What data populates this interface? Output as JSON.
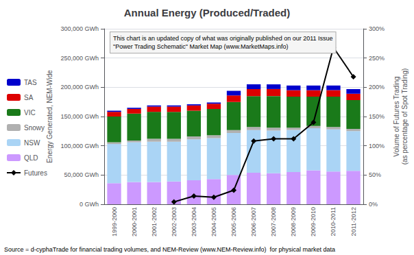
{
  "chart_data": {
    "type": "bar",
    "title": "Annual Energy (Produced/Traded)",
    "categories": [
      "1999-2000",
      "2000-2001",
      "2001-2002",
      "2002-2003",
      "2003-2004",
      "2004-2005",
      "2005-2006",
      "2006-2007",
      "2007-2008",
      "2008-2009",
      "2009-2010",
      "2010-2011",
      "2011-2012"
    ],
    "stacked": true,
    "series": [
      {
        "name": "QLD",
        "color": "#cc99ff",
        "values": [
          36000,
          38000,
          38000,
          39000,
          41000,
          43000,
          50000,
          54000,
          53000,
          55000,
          58000,
          56000,
          57000
        ]
      },
      {
        "name": "NSW",
        "color": "#aad4f5",
        "values": [
          67000,
          68000,
          69000,
          68000,
          70000,
          70000,
          72000,
          73000,
          73000,
          72000,
          72000,
          72000,
          68000
        ]
      },
      {
        "name": "Snowy",
        "color": "#b0b0b0",
        "values": [
          3000,
          3000,
          5000,
          5000,
          5000,
          5000,
          5000,
          5000,
          5000,
          4000,
          4000,
          4000,
          4000
        ]
      },
      {
        "name": "VIC",
        "color": "#1a7a1a",
        "values": [
          44000,
          46000,
          46000,
          46000,
          44000,
          45000,
          48000,
          53000,
          54000,
          53000,
          50000,
          52000,
          49000
        ]
      },
      {
        "name": "SA",
        "color": "#dd0000",
        "values": [
          8000,
          8000,
          9000,
          9000,
          9000,
          9000,
          11000,
          12000,
          12000,
          11000,
          11000,
          11000,
          11000
        ]
      },
      {
        "name": "TAS",
        "color": "#0000cc",
        "values": [
          2000,
          2000,
          2000,
          2000,
          2000,
          2000,
          8000,
          8000,
          8000,
          8000,
          8000,
          8000,
          8000
        ]
      },
      {
        "name": "Futures",
        "type": "line",
        "axis": "y2",
        "color": "#000000",
        "marker": "diamond",
        "values": [
          null,
          null,
          null,
          4,
          14,
          12,
          24,
          108,
          112,
          112,
          140,
          268,
          218
        ]
      }
    ],
    "ylabel": "Energy Generated, NEM-Wide",
    "y2label": "Volume of Futures Trading\n(as percentage of Spot Trading)",
    "ylim": [
      0,
      300000
    ],
    "yticks": [
      {
        "value": 0,
        "label": "0 GWh"
      },
      {
        "value": 50000,
        "label": "50,000 GWh"
      },
      {
        "value": 100000,
        "label": "100,000 GWh"
      },
      {
        "value": 150000,
        "label": "150,000 GWh"
      },
      {
        "value": 200000,
        "label": "200,000 GWh"
      },
      {
        "value": 250000,
        "label": "250,000 GWh"
      },
      {
        "value": 300000,
        "label": "300,000 GWh"
      }
    ],
    "y2lim": [
      0,
      300
    ],
    "y2ticks": [
      {
        "value": 0,
        "label": "0%"
      },
      {
        "value": 50,
        "label": "50%"
      },
      {
        "value": 100,
        "label": "100%"
      },
      {
        "value": 150,
        "label": "150%"
      },
      {
        "value": 200,
        "label": "200%"
      },
      {
        "value": 250,
        "label": "250%"
      },
      {
        "value": 300,
        "label": "300%"
      }
    ],
    "grid": true,
    "legend": "left",
    "annotations": [
      "This chart is an updated copy of what was originally published on our 2011 Issue\n\"Power Trading Schematic\" Market Map (www.MarketMaps.info)",
      "Source = d-cyphaTrade for financial trading volumes, and NEM-Review (www.NEM-Review.info)  for physical market data"
    ]
  }
}
